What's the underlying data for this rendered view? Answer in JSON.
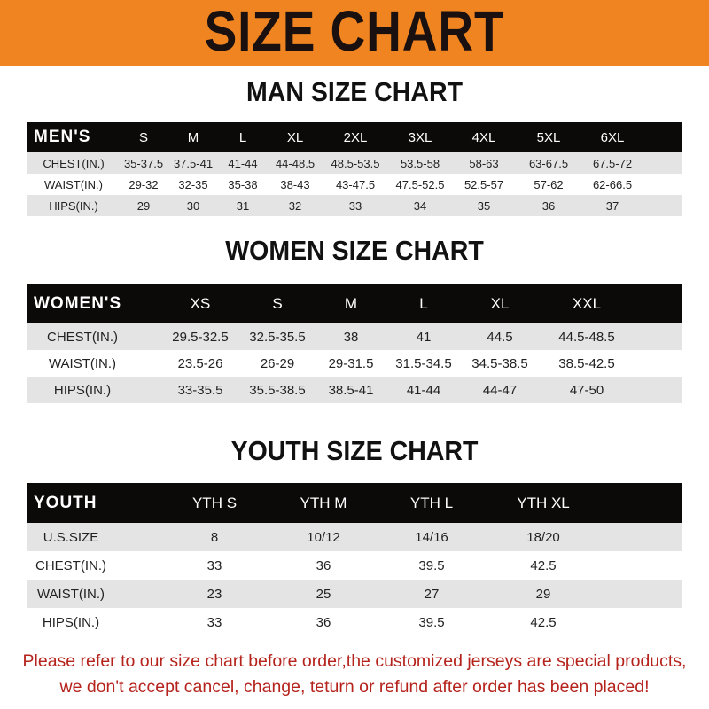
{
  "banner": {
    "title": "SIZE CHART",
    "color": "#ef8420"
  },
  "men": {
    "title": "MAN SIZE CHART",
    "headers": [
      "MEN'S",
      "S",
      "M",
      "L",
      "XL",
      "2XL",
      "3XL",
      "4XL",
      "5XL",
      "6XL"
    ],
    "rows": [
      [
        "CHEST(IN.)",
        "35-37.5",
        "37.5-41",
        "41-44",
        "44-48.5",
        "48.5-53.5",
        "53.5-58",
        "58-63",
        "63-67.5",
        "67.5-72"
      ],
      [
        "WAIST(IN.)",
        "29-32",
        "32-35",
        "35-38",
        "38-43",
        "43-47.5",
        "47.5-52.5",
        "52.5-57",
        "57-62",
        "62-66.5"
      ],
      [
        "HIPS(IN.)",
        "29",
        "30",
        "31",
        "32",
        "33",
        "34",
        "35",
        "36",
        "37"
      ]
    ]
  },
  "women": {
    "title": "WOMEN SIZE CHART",
    "headers": [
      "WOMEN'S",
      "XS",
      "S",
      "M",
      "L",
      "XL",
      "XXL"
    ],
    "rows": [
      [
        "CHEST(IN.)",
        "29.5-32.5",
        "32.5-35.5",
        "38",
        "41",
        "44.5",
        "44.5-48.5"
      ],
      [
        "WAIST(IN.)",
        "23.5-26",
        "26-29",
        "29-31.5",
        "31.5-34.5",
        "34.5-38.5",
        "38.5-42.5"
      ],
      [
        "HIPS(IN.)",
        "33-35.5",
        "35.5-38.5",
        "38.5-41",
        "41-44",
        "44-47",
        "47-50"
      ]
    ]
  },
  "youth": {
    "title": "YOUTH SIZE CHART",
    "headers": [
      "YOUTH",
      "YTH S",
      "YTH M",
      "YTH L",
      "YTH XL"
    ],
    "rows": [
      [
        "U.S.SIZE",
        "8",
        "10/12",
        "14/16",
        "18/20"
      ],
      [
        "CHEST(IN.)",
        "33",
        "36",
        "39.5",
        "42.5"
      ],
      [
        "WAIST(IN.)",
        "23",
        "25",
        "27",
        "29"
      ],
      [
        "HIPS(IN.)",
        "33",
        "36",
        "39.5",
        "42.5"
      ]
    ]
  },
  "footer": {
    "line1": "Please refer to our size chart before order,the customized jerseys are special products,",
    "line2": "we don't accept cancel, change, teturn or refund after order has been placed!",
    "color": "#b5231c"
  }
}
